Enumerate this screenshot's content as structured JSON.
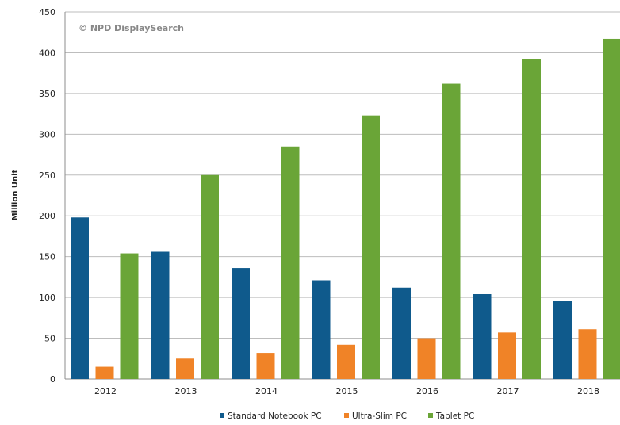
{
  "chart_data": {
    "type": "bar",
    "title": "",
    "watermark": "© NPD DisplaySearch",
    "ylabel": "Million Unit",
    "xlabel": "",
    "categories": [
      "2012",
      "2013",
      "2014",
      "2015",
      "2016",
      "2017",
      "2018"
    ],
    "series": [
      {
        "name": "Standard Notebook PC",
        "color": "#0f5a8c",
        "values": [
          198,
          156,
          136,
          121,
          112,
          104,
          96
        ]
      },
      {
        "name": "Ultra-Slim PC",
        "color": "#f08327",
        "values": [
          15,
          25,
          32,
          42,
          50,
          57,
          61
        ]
      },
      {
        "name": "Tablet PC",
        "color": "#6aa537",
        "values": [
          154,
          250,
          285,
          323,
          362,
          392,
          417
        ]
      }
    ],
    "ylim": [
      0,
      450
    ],
    "yticks": [
      "0",
      "50",
      "100",
      "150",
      "200",
      "250",
      "300",
      "350",
      "400",
      "450"
    ],
    "grid": true,
    "legend_position": "bottom"
  }
}
